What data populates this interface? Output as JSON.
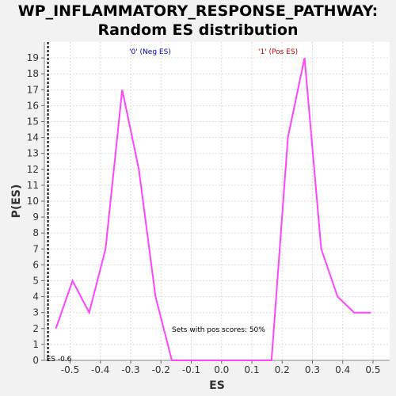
{
  "chart_data": {
    "type": "line",
    "title_line1": "WP_INFLAMMATORY_RESPONSE_PATHWAY:",
    "title_line2": "Random ES distribution",
    "xlabel": "ES",
    "ylabel": "P(ES)",
    "xlim": [
      -0.585,
      0.555
    ],
    "ylim": [
      0,
      20
    ],
    "x_ticks": [
      -0.5,
      -0.4,
      -0.3,
      -0.2,
      -0.1,
      0.0,
      0.1,
      0.2,
      0.3,
      0.4,
      0.5
    ],
    "x_tick_labels": [
      "-0.5",
      "-0.4",
      "-0.3",
      "-0.2",
      "-0.1",
      "0.0",
      "0.1",
      "0.2",
      "0.3",
      "0.4",
      "0.5"
    ],
    "y_ticks": [
      0,
      1,
      2,
      3,
      4,
      5,
      6,
      7,
      8,
      9,
      10,
      11,
      12,
      13,
      14,
      15,
      16,
      17,
      18,
      19
    ],
    "grid": true,
    "series": [
      {
        "color": "#ff44ff",
        "x": [
          -0.547,
          -0.492,
          -0.437,
          -0.383,
          -0.328,
          -0.273,
          -0.218,
          -0.164,
          -0.109,
          -0.054,
          0.001,
          0.055,
          0.11,
          0.165,
          0.219,
          0.274,
          0.329,
          0.383,
          0.438,
          0.493
        ],
        "y": [
          2,
          5,
          3,
          7,
          17,
          12,
          4,
          0,
          0,
          0,
          0,
          0,
          0,
          0,
          14,
          19,
          7,
          4,
          3,
          3
        ]
      }
    ],
    "es_marker": {
      "x": -0.573,
      "label": "ES -0.6"
    },
    "annotations": {
      "neg_label": "'0' (Neg ES)",
      "neg_color": "#0000cc",
      "pos_label": "'1' (Pos ES)",
      "pos_color": "#cc0000",
      "pos_scores_text": "Sets with pos scores: 50%"
    }
  }
}
